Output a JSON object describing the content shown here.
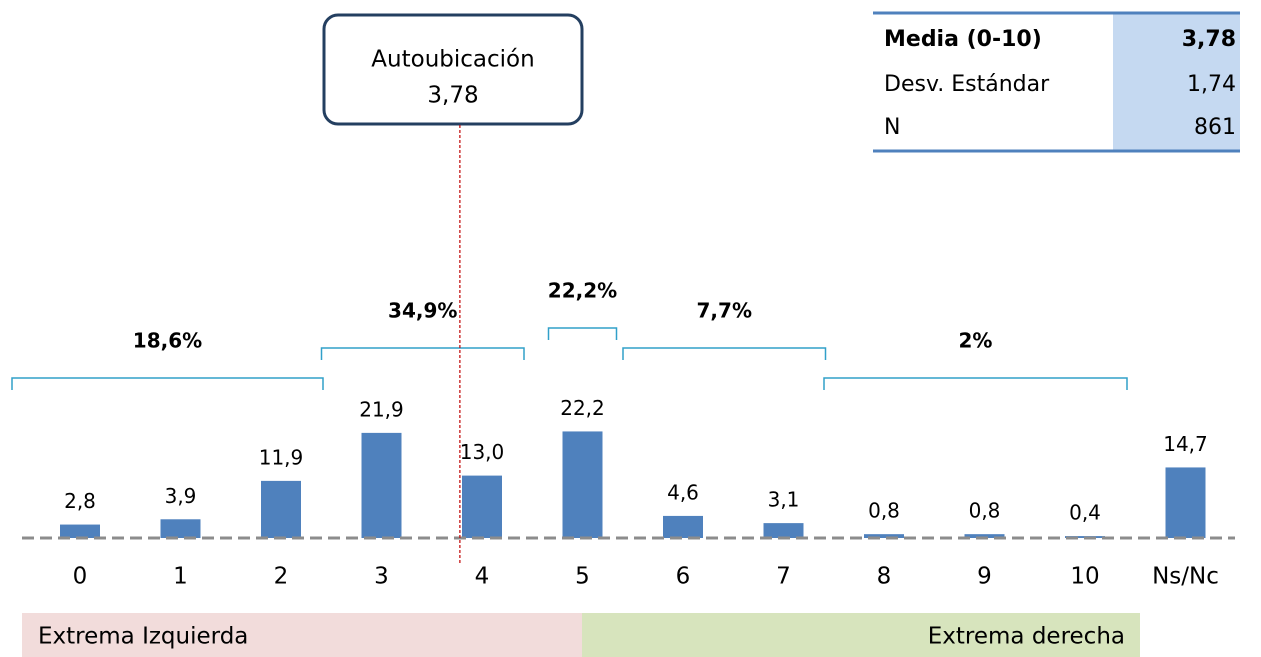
{
  "chart_data": {
    "type": "bar",
    "categories": [
      "0",
      "1",
      "2",
      "3",
      "4",
      "5",
      "6",
      "7",
      "8",
      "9",
      "10",
      "Ns/Nc"
    ],
    "values": [
      2.8,
      3.9,
      11.9,
      21.9,
      13.0,
      22.2,
      4.6,
      3.1,
      0.8,
      0.8,
      0.4,
      14.7
    ],
    "value_labels": [
      "2,8",
      "3,9",
      "11,9",
      "21,9",
      "13,0",
      "22,2",
      "4,6",
      "3,1",
      "0,8",
      "0,8",
      "0,4",
      "14,7"
    ],
    "color": "#4f81bd",
    "ylim": [
      0,
      25
    ],
    "groups": [
      {
        "value": 18.6,
        "label": "18,6%"
      },
      {
        "value": 34.9,
        "label": "34,9%"
      },
      {
        "value": 22.2,
        "label": "22,2%"
      },
      {
        "value": 7.7,
        "label": "7,7%"
      },
      {
        "value": 2,
        "label": "2%"
      }
    ],
    "annotation": {
      "text": "Autoubicación",
      "value": 3.78,
      "value_label": "3,78"
    },
    "stats_table": {
      "rows": [
        [
          "Media (0-10)",
          "3,78"
        ],
        [
          "Desv. Estándar",
          "1,74"
        ],
        [
          "N",
          "861"
        ]
      ]
    },
    "bands": {
      "left": "Extrema Izquierda",
      "right": "Extrema derecha"
    }
  }
}
